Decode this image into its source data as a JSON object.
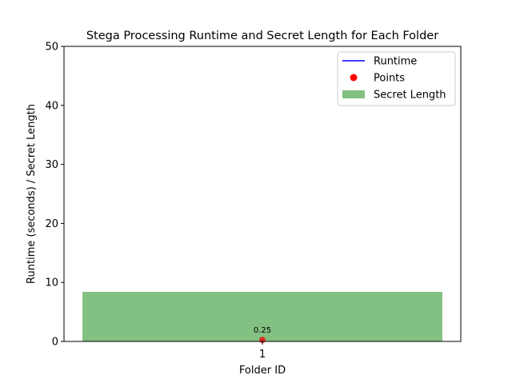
{
  "chart_data": {
    "type": "bar",
    "title": "Stega Processing Runtime and Secret Length for Each Folder",
    "xlabel": "Folder ID",
    "ylabel": "Runtime (seconds) / Secret Length",
    "categories": [
      "1"
    ],
    "ylim": [
      0,
      50
    ],
    "yticks": [
      "0",
      "10",
      "20",
      "30",
      "40",
      "50"
    ],
    "grid": false,
    "legend_position": "top-right",
    "series": [
      {
        "name": "Runtime",
        "kind": "line",
        "color": "#0000ff",
        "values": [
          0.25
        ]
      },
      {
        "name": "Points",
        "kind": "scatter",
        "color": "#ff0000",
        "values": [
          0.25
        ]
      },
      {
        "name": "Secret Length",
        "kind": "bar",
        "color": "#82c182",
        "values": [
          8.4
        ]
      }
    ],
    "annotations": [
      {
        "category": "1",
        "value": 0.25,
        "text": "0.25"
      }
    ]
  }
}
